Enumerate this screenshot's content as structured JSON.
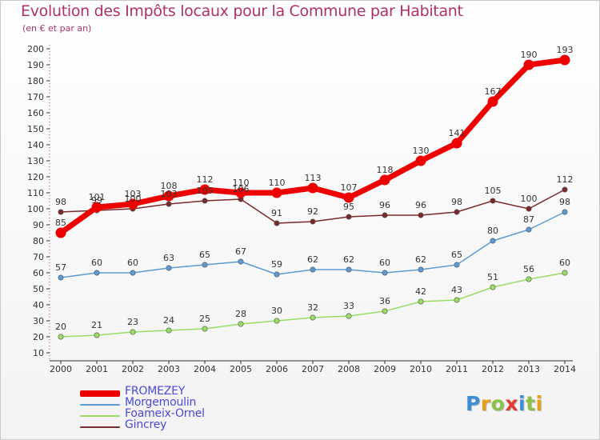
{
  "header": {
    "title": "Evolution des Impôts locaux pour la Commune par Habitant",
    "subtitle": "(en € et par an)"
  },
  "chart_data": {
    "type": "line",
    "x": [
      2000,
      2001,
      2002,
      2003,
      2004,
      2005,
      2006,
      2007,
      2008,
      2009,
      2010,
      2011,
      2012,
      2013,
      2014
    ],
    "ylim": [
      10,
      200
    ],
    "yticks": [
      10,
      20,
      30,
      40,
      50,
      60,
      70,
      80,
      90,
      100,
      110,
      120,
      130,
      140,
      150,
      160,
      170,
      180,
      190,
      200
    ],
    "grid": false,
    "legend_position": "bottom-left",
    "series": [
      {
        "name": "FROMEZEY",
        "color": "#ee0000",
        "values": [
          85,
          101,
          103,
          108,
          112,
          110,
          110,
          113,
          107,
          118,
          130,
          141,
          167,
          190,
          193
        ]
      },
      {
        "name": "Morgemoulin",
        "color": "#5b9bd5",
        "values": [
          57,
          60,
          60,
          63,
          65,
          67,
          59,
          62,
          62,
          60,
          62,
          65,
          80,
          87,
          98
        ]
      },
      {
        "name": "Foameix-Ornel",
        "color": "#99dd66",
        "values": [
          20,
          21,
          23,
          24,
          25,
          28,
          30,
          32,
          33,
          36,
          42,
          43,
          51,
          56,
          60
        ]
      },
      {
        "name": "Gincrey",
        "color": "#7a2a2a",
        "values": [
          98,
          99,
          100,
          103,
          105,
          106,
          91,
          92,
          95,
          96,
          96,
          98,
          105,
          100,
          112
        ]
      }
    ]
  },
  "logo": {
    "letters": [
      "P",
      "r",
      "o",
      "x",
      "i",
      "t",
      "i"
    ],
    "colors": [
      "#3b8fd6",
      "#e5a11a",
      "#8bc34a",
      "#e53935",
      "#3b8fd6",
      "#8bc34a",
      "#e5a11a"
    ]
  }
}
